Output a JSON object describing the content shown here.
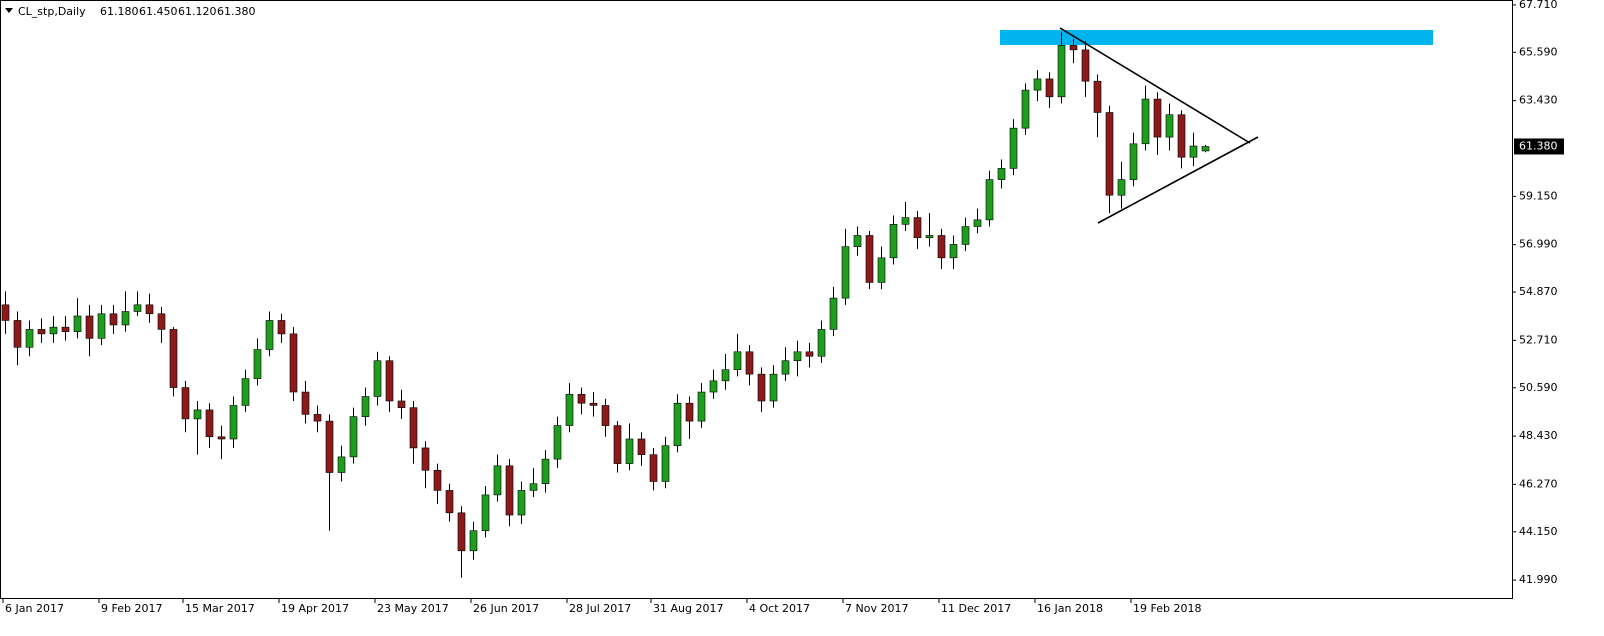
{
  "chart_data": {
    "type": "candlestick",
    "symbol": "CL_stp,Daily",
    "header_values": [
      {
        "value": 61.18,
        "label": "61.180"
      },
      {
        "value": 61.45,
        "label": "61.450"
      },
      {
        "value": 61.12,
        "label": "61.120"
      },
      {
        "value": 61.38,
        "label": "61.380"
      }
    ],
    "current_price": {
      "value": 61.38,
      "label": "61.380"
    },
    "categories": [
      "6 Jan 2017",
      null,
      null,
      null,
      null,
      null,
      null,
      null,
      "9 Feb 2017",
      null,
      null,
      null,
      null,
      null,
      null,
      "15 Mar 2017",
      null,
      null,
      null,
      null,
      null,
      null,
      null,
      "19 Apr 2017",
      null,
      null,
      null,
      null,
      null,
      null,
      null,
      "23 May 2017",
      null,
      null,
      null,
      null,
      null,
      null,
      null,
      "26 Jun 2017",
      null,
      null,
      null,
      null,
      null,
      null,
      null,
      "28 Jul 2017",
      null,
      null,
      null,
      null,
      null,
      null,
      "31 Aug 2017",
      null,
      null,
      null,
      null,
      null,
      null,
      null,
      "4 Oct 2017",
      null,
      null,
      null,
      null,
      null,
      null,
      null,
      "7 Nov 2017",
      null,
      null,
      null,
      null,
      null,
      null,
      null,
      "11 Dec 2017",
      null,
      null,
      null,
      null,
      null,
      null,
      null,
      "16 Jan 2018",
      null,
      null,
      null,
      null,
      null,
      null,
      null,
      "19 Feb 2018",
      null,
      null,
      null,
      null,
      null,
      null
    ],
    "open": [
      54.3,
      53.6,
      52.4,
      53.2,
      53.0,
      53.3,
      53.1,
      53.8,
      52.8,
      53.9,
      53.4,
      54.0,
      54.3,
      53.9,
      53.2,
      50.6,
      49.2,
      49.6,
      48.4,
      48.3,
      49.8,
      51.0,
      52.3,
      53.6,
      53.0,
      50.4,
      49.4,
      49.1,
      46.8,
      47.5,
      49.3,
      50.2,
      51.8,
      50.0,
      49.7,
      47.9,
      46.9,
      46.0,
      45.0,
      43.3,
      44.2,
      45.8,
      47.1,
      44.9,
      46.0,
      46.3,
      47.4,
      48.9,
      50.3,
      49.9,
      49.8,
      48.9,
      47.2,
      48.3,
      47.6,
      46.4,
      48.0,
      49.9,
      49.1,
      50.4,
      50.9,
      51.4,
      52.2,
      51.2,
      50.0,
      51.2,
      51.8,
      52.2,
      52.0,
      53.2,
      54.6,
      56.9,
      57.4,
      55.3,
      56.4,
      57.9,
      58.2,
      57.3,
      57.4,
      56.4,
      57.0,
      57.8,
      58.1,
      59.9,
      60.4,
      62.2,
      63.9,
      64.4,
      63.6,
      65.9,
      65.7,
      64.3,
      62.9,
      59.2,
      59.9,
      61.5,
      63.5,
      61.8,
      62.8,
      60.9,
      61.18
    ],
    "high": [
      54.9,
      54.0,
      53.6,
      53.7,
      53.8,
      53.8,
      54.6,
      54.3,
      54.3,
      54.3,
      54.9,
      54.9,
      54.8,
      54.2,
      53.3,
      50.9,
      50.0,
      49.9,
      48.9,
      50.2,
      51.4,
      52.8,
      54.0,
      53.9,
      53.3,
      50.9,
      49.8,
      49.4,
      48.0,
      49.7,
      50.6,
      52.2,
      52.0,
      50.5,
      50.0,
      48.2,
      47.2,
      46.3,
      45.3,
      44.6,
      46.2,
      47.6,
      47.4,
      46.4,
      47.0,
      47.8,
      49.3,
      50.8,
      50.6,
      50.4,
      50.1,
      49.1,
      49.0,
      48.6,
      47.9,
      48.4,
      50.3,
      50.2,
      50.8,
      51.4,
      52.1,
      53.0,
      52.5,
      51.5,
      51.6,
      52.4,
      52.7,
      52.6,
      53.6,
      55.1,
      57.7,
      57.8,
      57.6,
      56.9,
      58.3,
      58.9,
      58.5,
      58.4,
      57.7,
      57.4,
      58.2,
      58.6,
      60.3,
      60.8,
      62.6,
      64.2,
      64.8,
      64.7,
      66.5,
      66.2,
      66.1,
      64.6,
      63.2,
      60.7,
      62.0,
      64.1,
      63.8,
      63.3,
      63.0,
      62.0,
      61.45
    ],
    "low": [
      53.0,
      51.6,
      52.0,
      52.6,
      52.6,
      52.7,
      52.8,
      52.0,
      52.5,
      53.0,
      53.1,
      53.8,
      53.5,
      52.6,
      50.2,
      48.6,
      47.6,
      47.9,
      47.4,
      47.9,
      49.5,
      50.7,
      52.0,
      52.6,
      50.0,
      49.0,
      48.6,
      44.2,
      46.4,
      47.2,
      48.9,
      49.8,
      49.5,
      49.2,
      47.2,
      46.1,
      45.4,
      44.6,
      42.1,
      42.9,
      43.9,
      45.5,
      44.4,
      44.5,
      45.7,
      45.9,
      47.0,
      48.6,
      49.4,
      49.3,
      48.4,
      46.8,
      46.9,
      47.1,
      46.0,
      46.1,
      47.7,
      48.3,
      48.8,
      50.1,
      50.5,
      51.1,
      50.7,
      49.5,
      49.7,
      50.9,
      51.1,
      51.5,
      51.7,
      52.9,
      54.3,
      56.5,
      55.0,
      55.0,
      56.1,
      57.6,
      56.8,
      56.9,
      55.9,
      55.9,
      56.7,
      57.5,
      57.8,
      59.5,
      60.1,
      61.9,
      63.4,
      63.1,
      63.3,
      65.1,
      63.6,
      61.8,
      58.4,
      58.6,
      59.6,
      61.2,
      61.0,
      61.2,
      60.4,
      60.5,
      61.12
    ],
    "close": [
      53.6,
      52.4,
      53.2,
      53.0,
      53.3,
      53.1,
      53.8,
      52.8,
      53.9,
      53.4,
      54.0,
      54.3,
      53.9,
      53.2,
      50.6,
      49.2,
      49.6,
      48.4,
      48.3,
      49.8,
      51.0,
      52.3,
      53.6,
      53.0,
      50.4,
      49.4,
      49.1,
      46.8,
      47.5,
      49.3,
      50.2,
      51.8,
      50.0,
      49.7,
      47.9,
      46.9,
      46.0,
      45.0,
      43.3,
      44.2,
      45.8,
      47.1,
      44.9,
      46.0,
      46.3,
      47.4,
      48.9,
      50.3,
      49.9,
      49.8,
      48.9,
      47.2,
      48.3,
      47.6,
      46.4,
      48.0,
      49.9,
      49.1,
      50.4,
      50.9,
      51.4,
      52.2,
      51.2,
      50.0,
      51.2,
      51.8,
      52.2,
      52.0,
      53.2,
      54.6,
      56.9,
      57.4,
      55.3,
      56.4,
      57.9,
      58.2,
      57.3,
      57.4,
      56.4,
      57.0,
      57.8,
      58.1,
      59.9,
      60.4,
      62.2,
      63.9,
      64.4,
      63.6,
      65.9,
      65.7,
      64.3,
      62.9,
      59.2,
      59.9,
      61.5,
      63.5,
      61.8,
      62.8,
      60.9,
      61.4,
      61.38
    ],
    "up_color": "#1e9e1e",
    "down_color": "#8b1a1a",
    "resistance_zone": {
      "low": 65.92,
      "high": 66.59,
      "color": "#00b4f0"
    },
    "ylim": [
      41.19,
      67.93
    ],
    "yticks": [
      {
        "value": 67.71,
        "label": "67.710"
      },
      {
        "value": 65.59,
        "label": "65.590"
      },
      {
        "value": 63.43,
        "label": "63.430"
      },
      {
        "value": 59.15,
        "label": "59.150"
      },
      {
        "value": 56.99,
        "label": "56.990"
      },
      {
        "value": 54.87,
        "label": "54.870"
      },
      {
        "value": 52.71,
        "label": "52.710"
      },
      {
        "value": 50.59,
        "label": "50.590"
      },
      {
        "value": 48.43,
        "label": "48.430"
      },
      {
        "value": 46.27,
        "label": "46.270"
      },
      {
        "value": 44.15,
        "label": "44.150"
      },
      {
        "value": 41.99,
        "label": "41.990"
      }
    ],
    "grid": false
  }
}
